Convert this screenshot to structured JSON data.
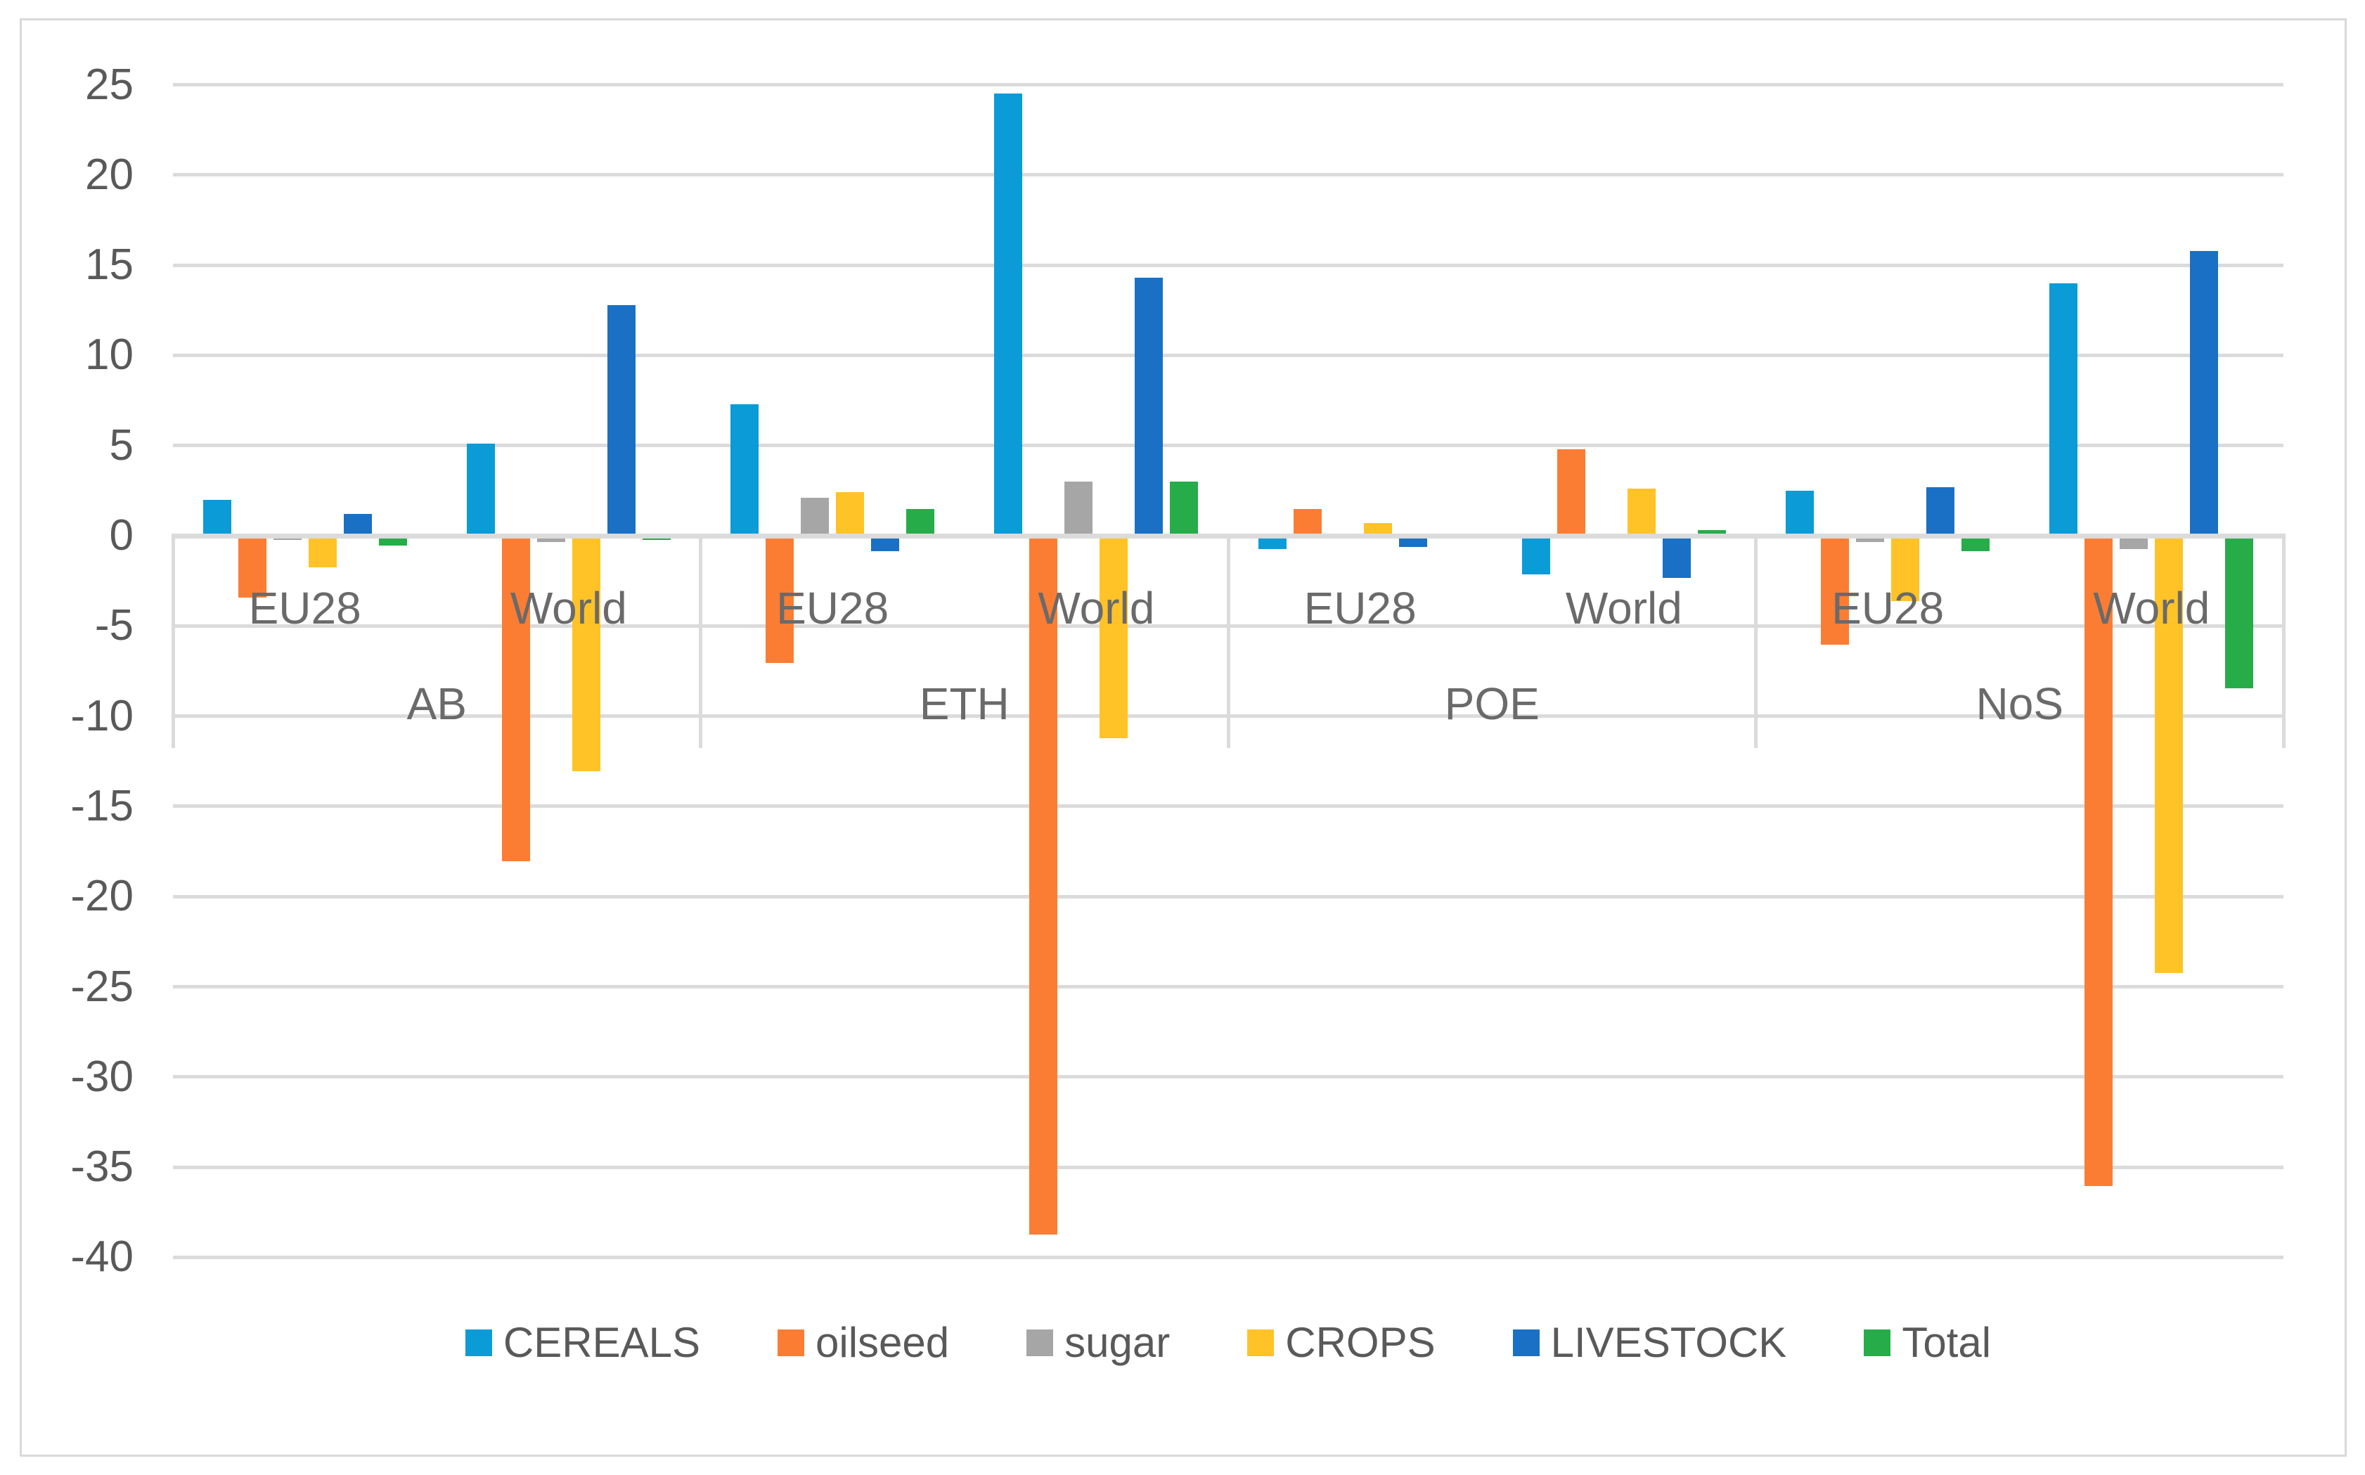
{
  "chart_data": {
    "type": "bar",
    "title": "",
    "xlabel": "",
    "ylabel": "",
    "ylim": [
      -40,
      25
    ],
    "yticks": [
      25,
      20,
      15,
      10,
      5,
      0,
      -5,
      -10,
      -15,
      -20,
      -25,
      -30,
      -35,
      -40
    ],
    "grid": true,
    "legend_position": "bottom",
    "grid_color": "#DBDBDB",
    "text_color": "#595959",
    "groups": [
      "AB",
      "ETH",
      "POE",
      "NoS"
    ],
    "subgroups": [
      "EU28",
      "World"
    ],
    "categories": [
      "AB EU28",
      "AB World",
      "ETH EU28",
      "ETH World",
      "POE EU28",
      "POE World",
      "NoS EU28",
      "NoS World"
    ],
    "series": [
      {
        "name": "CEREALS",
        "color": "#0B9BD7",
        "values": [
          2.0,
          5.1,
          7.3,
          24.5,
          -0.7,
          -2.1,
          2.5,
          14.0
        ]
      },
      {
        "name": "oilseed",
        "color": "#FB7D33",
        "values": [
          -3.4,
          -18.0,
          -7.0,
          -38.7,
          1.5,
          4.8,
          -6.0,
          -36.0
        ]
      },
      {
        "name": "sugar",
        "color": "#A6A6A6",
        "values": [
          -0.2,
          -0.3,
          2.1,
          3.0,
          0.0,
          0.0,
          -0.3,
          -0.7
        ]
      },
      {
        "name": "CROPS",
        "color": "#FFC328",
        "values": [
          -1.7,
          -13.0,
          2.4,
          -11.2,
          0.7,
          2.6,
          -3.6,
          -24.2
        ]
      },
      {
        "name": "LIVESTOCK",
        "color": "#1970C5",
        "values": [
          1.2,
          12.8,
          -0.8,
          14.3,
          -0.6,
          -2.3,
          2.7,
          15.8
        ]
      },
      {
        "name": "Total",
        "color": "#27AC4A",
        "values": [
          -0.5,
          -0.2,
          1.5,
          3.0,
          0.1,
          0.3,
          -0.8,
          -8.4
        ]
      }
    ]
  }
}
